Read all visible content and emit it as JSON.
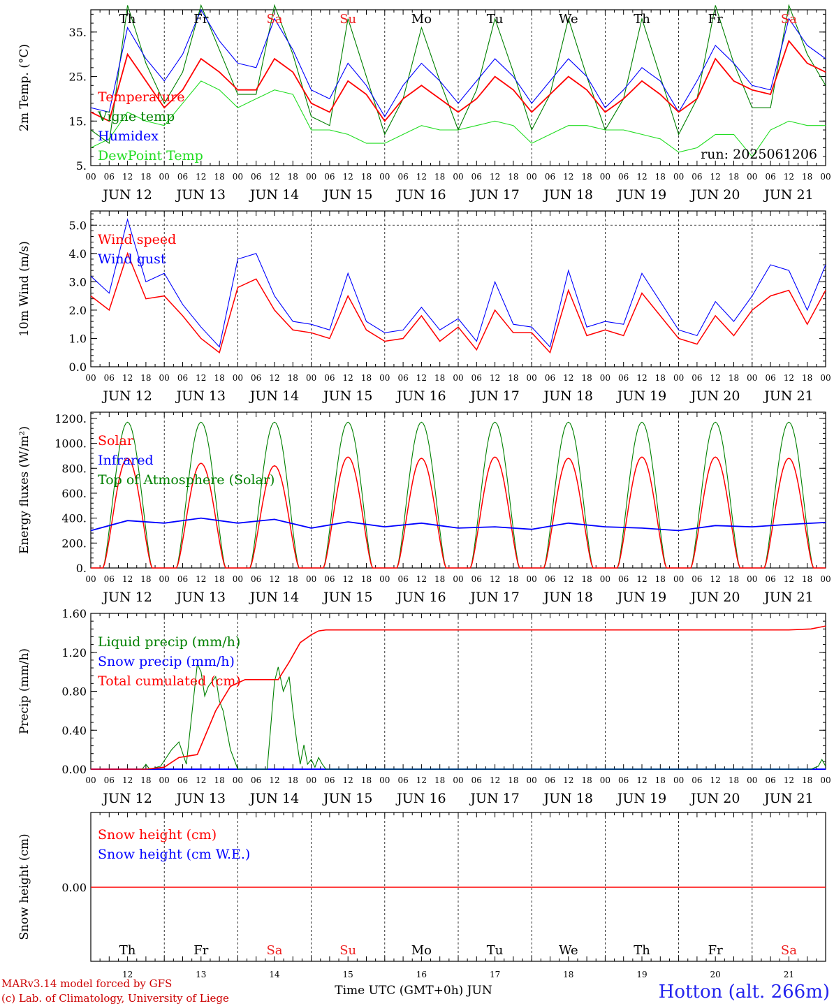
{
  "colors": {
    "red": "#ff0000",
    "blue": "#0000ff",
    "darkgreen": "#008000",
    "green": "#22dd22",
    "weekend": "#ee2222",
    "weekday": "#000000"
  },
  "days": [
    "Th",
    "Fr",
    "Sa",
    "Su",
    "Mo",
    "Tu",
    "We",
    "Th",
    "Fr",
    "Sa"
  ],
  "weekend_days": [
    2,
    3,
    9
  ],
  "dates": [
    "JUN 12",
    "JUN 13",
    "JUN 14",
    "JUN 15",
    "JUN 16",
    "JUN 17",
    "JUN 18",
    "JUN 19",
    "JUN 20",
    "JUN 21"
  ],
  "day_numbers": [
    "12",
    "13",
    "14",
    "15",
    "16",
    "17",
    "18",
    "19",
    "20",
    "21"
  ],
  "hour_labels": [
    "00",
    "06",
    "12",
    "18"
  ],
  "hour_last": "00",
  "run_label": "run: 2025061206",
  "footer": {
    "model": "MARv3.14 model forced by GFS",
    "lab": "(c) Lab. of Climatology, University of Liege",
    "xaxis": "Time UTC (GMT+0h) JUN",
    "station": "Hotton (alt. 266m)"
  },
  "chart_data": [
    {
      "type": "line",
      "ylabel": "2m Temp. (°C)",
      "ylim": [
        5,
        40
      ],
      "yticks": [
        5,
        15,
        25,
        35
      ],
      "ytick_labels": [
        "5.",
        "15.",
        "25.",
        "35."
      ],
      "xunits": "days since JUN 12 00 UTC",
      "series": [
        {
          "name": "Temperature",
          "color": "#ff0000",
          "x": [
            0,
            0.25,
            0.5,
            0.75,
            1,
            1.25,
            1.5,
            1.75,
            2,
            2.25,
            2.5,
            2.75,
            3,
            3.25,
            3.5,
            3.75,
            4,
            4.25,
            4.5,
            4.75,
            5,
            5.25,
            5.5,
            5.75,
            6,
            6.25,
            6.5,
            6.75,
            7,
            7.25,
            7.5,
            7.75,
            8,
            8.25,
            8.5,
            8.75,
            9,
            9.25,
            9.5,
            9.75,
            10
          ],
          "y": [
            17,
            15,
            30,
            24,
            18,
            22,
            29,
            26,
            22,
            22,
            29,
            26,
            19,
            17,
            24,
            21,
            15,
            20,
            23,
            20,
            17,
            20,
            25,
            22,
            17,
            21,
            25,
            22,
            17,
            20,
            24,
            21,
            17,
            20,
            29,
            24,
            22,
            21,
            33,
            28,
            26
          ]
        },
        {
          "name": "Vigne temp",
          "color": "#008000",
          "x": [
            0,
            0.25,
            0.5,
            0.75,
            1,
            1.25,
            1.5,
            1.75,
            2,
            2.25,
            2.5,
            2.75,
            3,
            3.25,
            3.5,
            3.75,
            4,
            4.25,
            4.5,
            4.75,
            5,
            5.25,
            5.5,
            5.75,
            6,
            6.25,
            6.5,
            6.75,
            7,
            7.25,
            7.5,
            7.75,
            8,
            8.25,
            8.5,
            8.75,
            9,
            9.25,
            9.5,
            9.75,
            10
          ],
          "y": [
            13,
            10,
            41,
            28,
            19,
            26,
            41,
            31,
            21,
            21,
            41,
            30,
            16,
            14,
            38,
            25,
            12,
            20,
            36,
            24,
            13,
            22,
            38,
            26,
            13,
            21,
            38,
            25,
            13,
            20,
            38,
            25,
            12,
            20,
            41,
            28,
            18,
            18,
            41,
            30,
            23
          ]
        },
        {
          "name": "Humidex",
          "color": "#0000ff",
          "x": [
            0,
            0.25,
            0.5,
            0.75,
            1,
            1.25,
            1.5,
            1.75,
            2,
            2.25,
            2.5,
            2.75,
            3,
            3.25,
            3.5,
            3.75,
            4,
            4.25,
            4.5,
            4.75,
            5,
            5.25,
            5.5,
            5.75,
            6,
            6.25,
            6.5,
            6.75,
            7,
            7.25,
            7.5,
            7.75,
            8,
            8.25,
            8.5,
            8.75,
            9,
            9.25,
            9.5,
            9.75,
            10
          ],
          "y": [
            18,
            17,
            36,
            29,
            24,
            30,
            40,
            33,
            28,
            27,
            38,
            31,
            22,
            20,
            28,
            23,
            16,
            23,
            28,
            24,
            19,
            24,
            29,
            25,
            19,
            24,
            29,
            25,
            18,
            22,
            27,
            24,
            17,
            24,
            32,
            28,
            23,
            22,
            38,
            32,
            29
          ]
        },
        {
          "name": "DewPoint Temp",
          "color": "#22dd22",
          "x": [
            0,
            0.25,
            0.5,
            0.75,
            1,
            1.25,
            1.5,
            1.75,
            2,
            2.25,
            2.5,
            2.75,
            3,
            3.25,
            3.5,
            3.75,
            4,
            4.25,
            4.5,
            4.75,
            5,
            5.25,
            5.5,
            5.75,
            6,
            6.25,
            6.5,
            6.75,
            7,
            7.25,
            7.5,
            7.75,
            8,
            8.25,
            8.5,
            8.75,
            9,
            9.25,
            9.5,
            9.75,
            10
          ],
          "y": [
            9,
            11,
            17,
            15,
            14,
            19,
            24,
            22,
            18,
            20,
            22,
            21,
            13,
            13,
            12,
            10,
            10,
            12,
            14,
            13,
            13,
            14,
            15,
            14,
            10,
            12,
            14,
            14,
            13,
            13,
            12,
            11,
            8,
            9,
            12,
            12,
            7,
            13,
            15,
            14,
            14
          ]
        }
      ]
    },
    {
      "type": "line",
      "ylabel": "10m Wind (m/s)",
      "ylim": [
        0,
        5.5
      ],
      "yticks": [
        0,
        1,
        2,
        3,
        4,
        5
      ],
      "ytick_labels": [
        "0.0",
        "1.0",
        "2.0",
        "3.0",
        "4.0",
        "5.0"
      ],
      "xunits": "days since JUN 12 00 UTC",
      "series": [
        {
          "name": "Wind speed",
          "color": "#ff0000",
          "x": [
            0,
            0.25,
            0.5,
            0.75,
            1,
            1.25,
            1.5,
            1.75,
            2,
            2.25,
            2.5,
            2.75,
            3,
            3.25,
            3.5,
            3.75,
            4,
            4.25,
            4.5,
            4.75,
            5,
            5.25,
            5.5,
            5.75,
            6,
            6.25,
            6.5,
            6.75,
            7,
            7.25,
            7.5,
            7.75,
            8,
            8.25,
            8.5,
            8.75,
            9,
            9.25,
            9.5,
            9.75,
            10
          ],
          "y": [
            2.5,
            2.0,
            4.0,
            2.4,
            2.5,
            1.8,
            1.0,
            0.5,
            2.8,
            3.1,
            2.0,
            1.3,
            1.2,
            1.0,
            2.5,
            1.3,
            0.9,
            1.0,
            1.8,
            0.9,
            1.4,
            0.6,
            2.0,
            1.2,
            1.2,
            0.5,
            2.7,
            1.1,
            1.3,
            1.1,
            2.6,
            1.8,
            1.0,
            0.8,
            1.8,
            1.1,
            2.0,
            2.5,
            2.7,
            1.5,
            2.7
          ]
        },
        {
          "name": "Wind gust",
          "color": "#0000ff",
          "x": [
            0,
            0.25,
            0.5,
            0.75,
            1,
            1.25,
            1.5,
            1.75,
            2,
            2.25,
            2.5,
            2.75,
            3,
            3.25,
            3.5,
            3.75,
            4,
            4.25,
            4.5,
            4.75,
            5,
            5.25,
            5.5,
            5.75,
            6,
            6.25,
            6.5,
            6.75,
            7,
            7.25,
            7.5,
            7.75,
            8,
            8.25,
            8.5,
            8.75,
            9,
            9.25,
            9.5,
            9.75,
            10
          ],
          "y": [
            3.2,
            2.6,
            5.2,
            3.0,
            3.3,
            2.2,
            1.4,
            0.7,
            3.8,
            4.0,
            2.5,
            1.6,
            1.5,
            1.3,
            3.3,
            1.6,
            1.2,
            1.3,
            2.1,
            1.3,
            1.7,
            0.9,
            3.0,
            1.5,
            1.4,
            0.7,
            3.4,
            1.4,
            1.6,
            1.5,
            3.3,
            2.3,
            1.3,
            1.1,
            2.3,
            1.6,
            2.5,
            3.6,
            3.4,
            2.0,
            3.6
          ]
        }
      ]
    },
    {
      "type": "line",
      "ylabel": "Energy fluxes (W/m²)",
      "ylim": [
        0,
        1250
      ],
      "yticks": [
        0,
        200,
        400,
        600,
        800,
        1000,
        1200
      ],
      "ytick_labels": [
        "0.",
        "200.",
        "400.",
        "600.",
        "800.",
        "1000.",
        "1200."
      ],
      "xunits": "days since JUN 12 00 UTC",
      "series": [
        {
          "name": "Solar",
          "color": "#ff0000",
          "daily_peak": [
            880,
            840,
            820,
            890,
            880,
            890,
            880,
            890,
            890,
            880
          ]
        },
        {
          "name": "Infrared",
          "color": "#0000ff",
          "x": [
            0,
            0.5,
            1,
            1.5,
            2,
            2.5,
            3,
            3.5,
            4,
            4.5,
            5,
            5.5,
            6,
            6.5,
            7,
            7.5,
            8,
            8.5,
            9,
            9.5,
            10
          ],
          "y": [
            300,
            380,
            360,
            400,
            360,
            390,
            320,
            370,
            330,
            360,
            320,
            330,
            310,
            360,
            330,
            320,
            300,
            340,
            330,
            350,
            365
          ]
        },
        {
          "name": "Top of Atmosphere (Solar)",
          "color": "#008000",
          "daily_peak": [
            1170,
            1170,
            1170,
            1170,
            1170,
            1170,
            1170,
            1170,
            1170,
            1170
          ]
        }
      ]
    },
    {
      "type": "line",
      "ylabel": "Precip (mm/h)",
      "ylim": [
        0,
        1.6
      ],
      "yticks": [
        0,
        0.4,
        0.8,
        1.2,
        1.6
      ],
      "ytick_labels": [
        "0.00",
        "0.40",
        "0.80",
        "1.20",
        "1.60"
      ],
      "xunits": "days since JUN 12 00 UTC",
      "series": [
        {
          "name": "Liquid precip (mm/h)",
          "color": "#008000",
          "x": [
            0,
            0.7,
            0.75,
            0.8,
            0.95,
            1.1,
            1.2,
            1.3,
            1.45,
            1.5,
            1.55,
            1.6,
            1.7,
            1.75,
            1.8,
            1.9,
            2.0,
            2.4,
            2.5,
            2.55,
            2.62,
            2.7,
            2.75,
            2.8,
            2.85,
            2.9,
            2.95,
            3.0,
            3.05,
            3.1,
            3.15,
            3.2,
            9.8,
            9.9,
            9.95,
            10
          ],
          "y": [
            0,
            0,
            0.05,
            0,
            0.03,
            0.2,
            0.28,
            0.05,
            1.08,
            1.0,
            0.75,
            0.85,
            0.95,
            0.7,
            0.6,
            0.2,
            0,
            0,
            0.9,
            1.05,
            0.8,
            0.95,
            0.6,
            0.3,
            0.05,
            0.25,
            0.05,
            0.1,
            0.02,
            0.12,
            0.05,
            0,
            0,
            0.03,
            0.1,
            0.03
          ]
        },
        {
          "name": "Snow precip (mm/h)",
          "color": "#0000ff",
          "x": [
            0,
            10
          ],
          "y": [
            0,
            0
          ]
        },
        {
          "name": "Total cumulated (cm)",
          "color": "#ff0000",
          "x": [
            0,
            0.75,
            1.0,
            1.2,
            1.45,
            1.7,
            1.9,
            2.1,
            2.3,
            2.55,
            2.7,
            2.85,
            3.0,
            3.1,
            3.2,
            3.4,
            9.5,
            9.8,
            10
          ],
          "y": [
            0,
            0,
            0.02,
            0.12,
            0.15,
            0.6,
            0.85,
            0.92,
            0.92,
            0.92,
            1.1,
            1.3,
            1.38,
            1.42,
            1.43,
            1.43,
            1.43,
            1.44,
            1.47
          ]
        }
      ]
    },
    {
      "type": "line",
      "ylabel": "Snow height (cm)",
      "ytick_labels": [
        "0.00"
      ],
      "xunits": "days since JUN 12 00 UTC",
      "series": [
        {
          "name": "Snow height (cm)",
          "color": "#ff0000",
          "x": [
            0,
            10
          ],
          "y": [
            0,
            0
          ]
        },
        {
          "name": "Snow height (cm W.E.)",
          "color": "#0000ff",
          "x": [
            0,
            10
          ],
          "y": [
            0,
            0
          ]
        }
      ]
    }
  ]
}
